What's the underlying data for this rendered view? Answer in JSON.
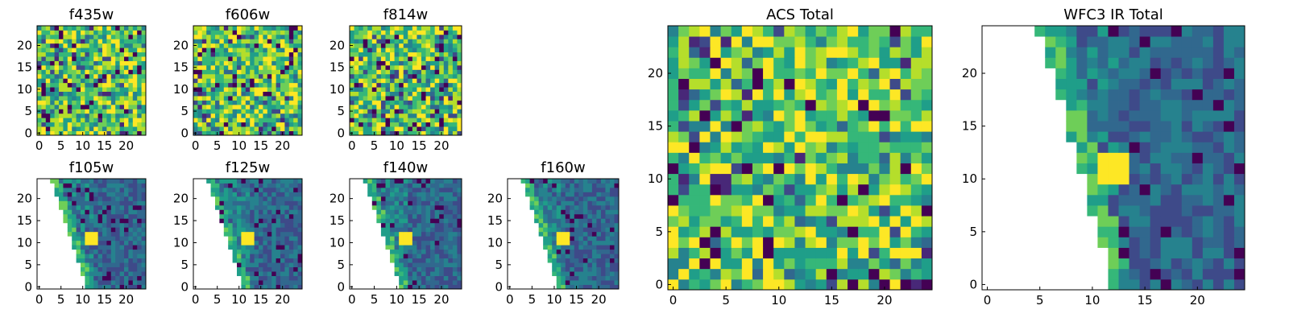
{
  "chart_data": [
    {
      "type": "heatmap",
      "title": "f435w",
      "xticks": [
        "0",
        "5",
        "10",
        "15",
        "20"
      ],
      "yticks": [
        "0",
        "5",
        "10",
        "15",
        "20"
      ],
      "xlim": [
        0,
        25
      ],
      "ylim": [
        0,
        25
      ],
      "grid": false,
      "colormap": "viridis",
      "masked": false
    },
    {
      "type": "heatmap",
      "title": "f606w",
      "xticks": [
        "0",
        "5",
        "10",
        "15",
        "20"
      ],
      "yticks": [
        "0",
        "5",
        "10",
        "15",
        "20"
      ],
      "xlim": [
        0,
        25
      ],
      "ylim": [
        0,
        25
      ],
      "grid": false,
      "colormap": "viridis",
      "masked": false
    },
    {
      "type": "heatmap",
      "title": "f814w",
      "xticks": [
        "0",
        "5",
        "10",
        "15",
        "20"
      ],
      "yticks": [
        "0",
        "5",
        "10",
        "15",
        "20"
      ],
      "xlim": [
        0,
        25
      ],
      "ylim": [
        0,
        25
      ],
      "grid": false,
      "colormap": "viridis",
      "masked": false
    },
    {
      "type": "heatmap",
      "title": "ACS Total",
      "xticks": [
        "0",
        "5",
        "10",
        "15",
        "20"
      ],
      "yticks": [
        "0",
        "5",
        "10",
        "15",
        "20"
      ],
      "xlim": [
        0,
        25
      ],
      "ylim": [
        0,
        25
      ],
      "grid": false,
      "colormap": "viridis",
      "masked": false
    },
    {
      "type": "heatmap",
      "title": "f105w",
      "xticks": [
        "0",
        "5",
        "10",
        "15",
        "20"
      ],
      "yticks": [
        "0",
        "5",
        "10",
        "15",
        "20"
      ],
      "xlim": [
        0,
        25
      ],
      "ylim": [
        0,
        25
      ],
      "grid": false,
      "colormap": "viridis",
      "masked": true,
      "mask_edge_x": [
        3,
        11
      ],
      "bright_spot": [
        12,
        11
      ]
    },
    {
      "type": "heatmap",
      "title": "f125w",
      "xticks": [
        "0",
        "5",
        "10",
        "15",
        "20"
      ],
      "yticks": [
        "0",
        "5",
        "10",
        "15",
        "20"
      ],
      "xlim": [
        0,
        25
      ],
      "ylim": [
        0,
        25
      ],
      "grid": false,
      "colormap": "viridis",
      "masked": true,
      "mask_edge_x": [
        3,
        11
      ],
      "bright_spot": [
        12,
        11
      ]
    },
    {
      "type": "heatmap",
      "title": "f140w",
      "xticks": [
        "0",
        "5",
        "10",
        "15",
        "20"
      ],
      "yticks": [
        "0",
        "5",
        "10",
        "15",
        "20"
      ],
      "xlim": [
        0,
        25
      ],
      "ylim": [
        0,
        25
      ],
      "grid": false,
      "colormap": "viridis",
      "masked": true,
      "mask_edge_x": [
        3,
        11
      ],
      "bright_spot": [
        12,
        11
      ]
    },
    {
      "type": "heatmap",
      "title": "f160w",
      "xticks": [
        "0",
        "5",
        "10",
        "15",
        "20"
      ],
      "yticks": [
        "0",
        "5",
        "10",
        "15",
        "20"
      ],
      "xlim": [
        0,
        25
      ],
      "ylim": [
        0,
        25
      ],
      "grid": false,
      "colormap": "viridis",
      "masked": true,
      "mask_edge_x": [
        3,
        11
      ],
      "bright_spot": [
        12,
        11
      ]
    },
    {
      "type": "heatmap",
      "title": "WFC3 IR Total",
      "xticks": [
        "0",
        "5",
        "10",
        "15",
        "20"
      ],
      "yticks": [
        "0",
        "5",
        "10",
        "15",
        "20"
      ],
      "xlim": [
        0,
        25
      ],
      "ylim": [
        0,
        25
      ],
      "grid": false,
      "colormap": "viridis",
      "masked": true,
      "mask_edge_x": [
        5,
        12
      ],
      "bright_spot": [
        12,
        11
      ]
    }
  ]
}
